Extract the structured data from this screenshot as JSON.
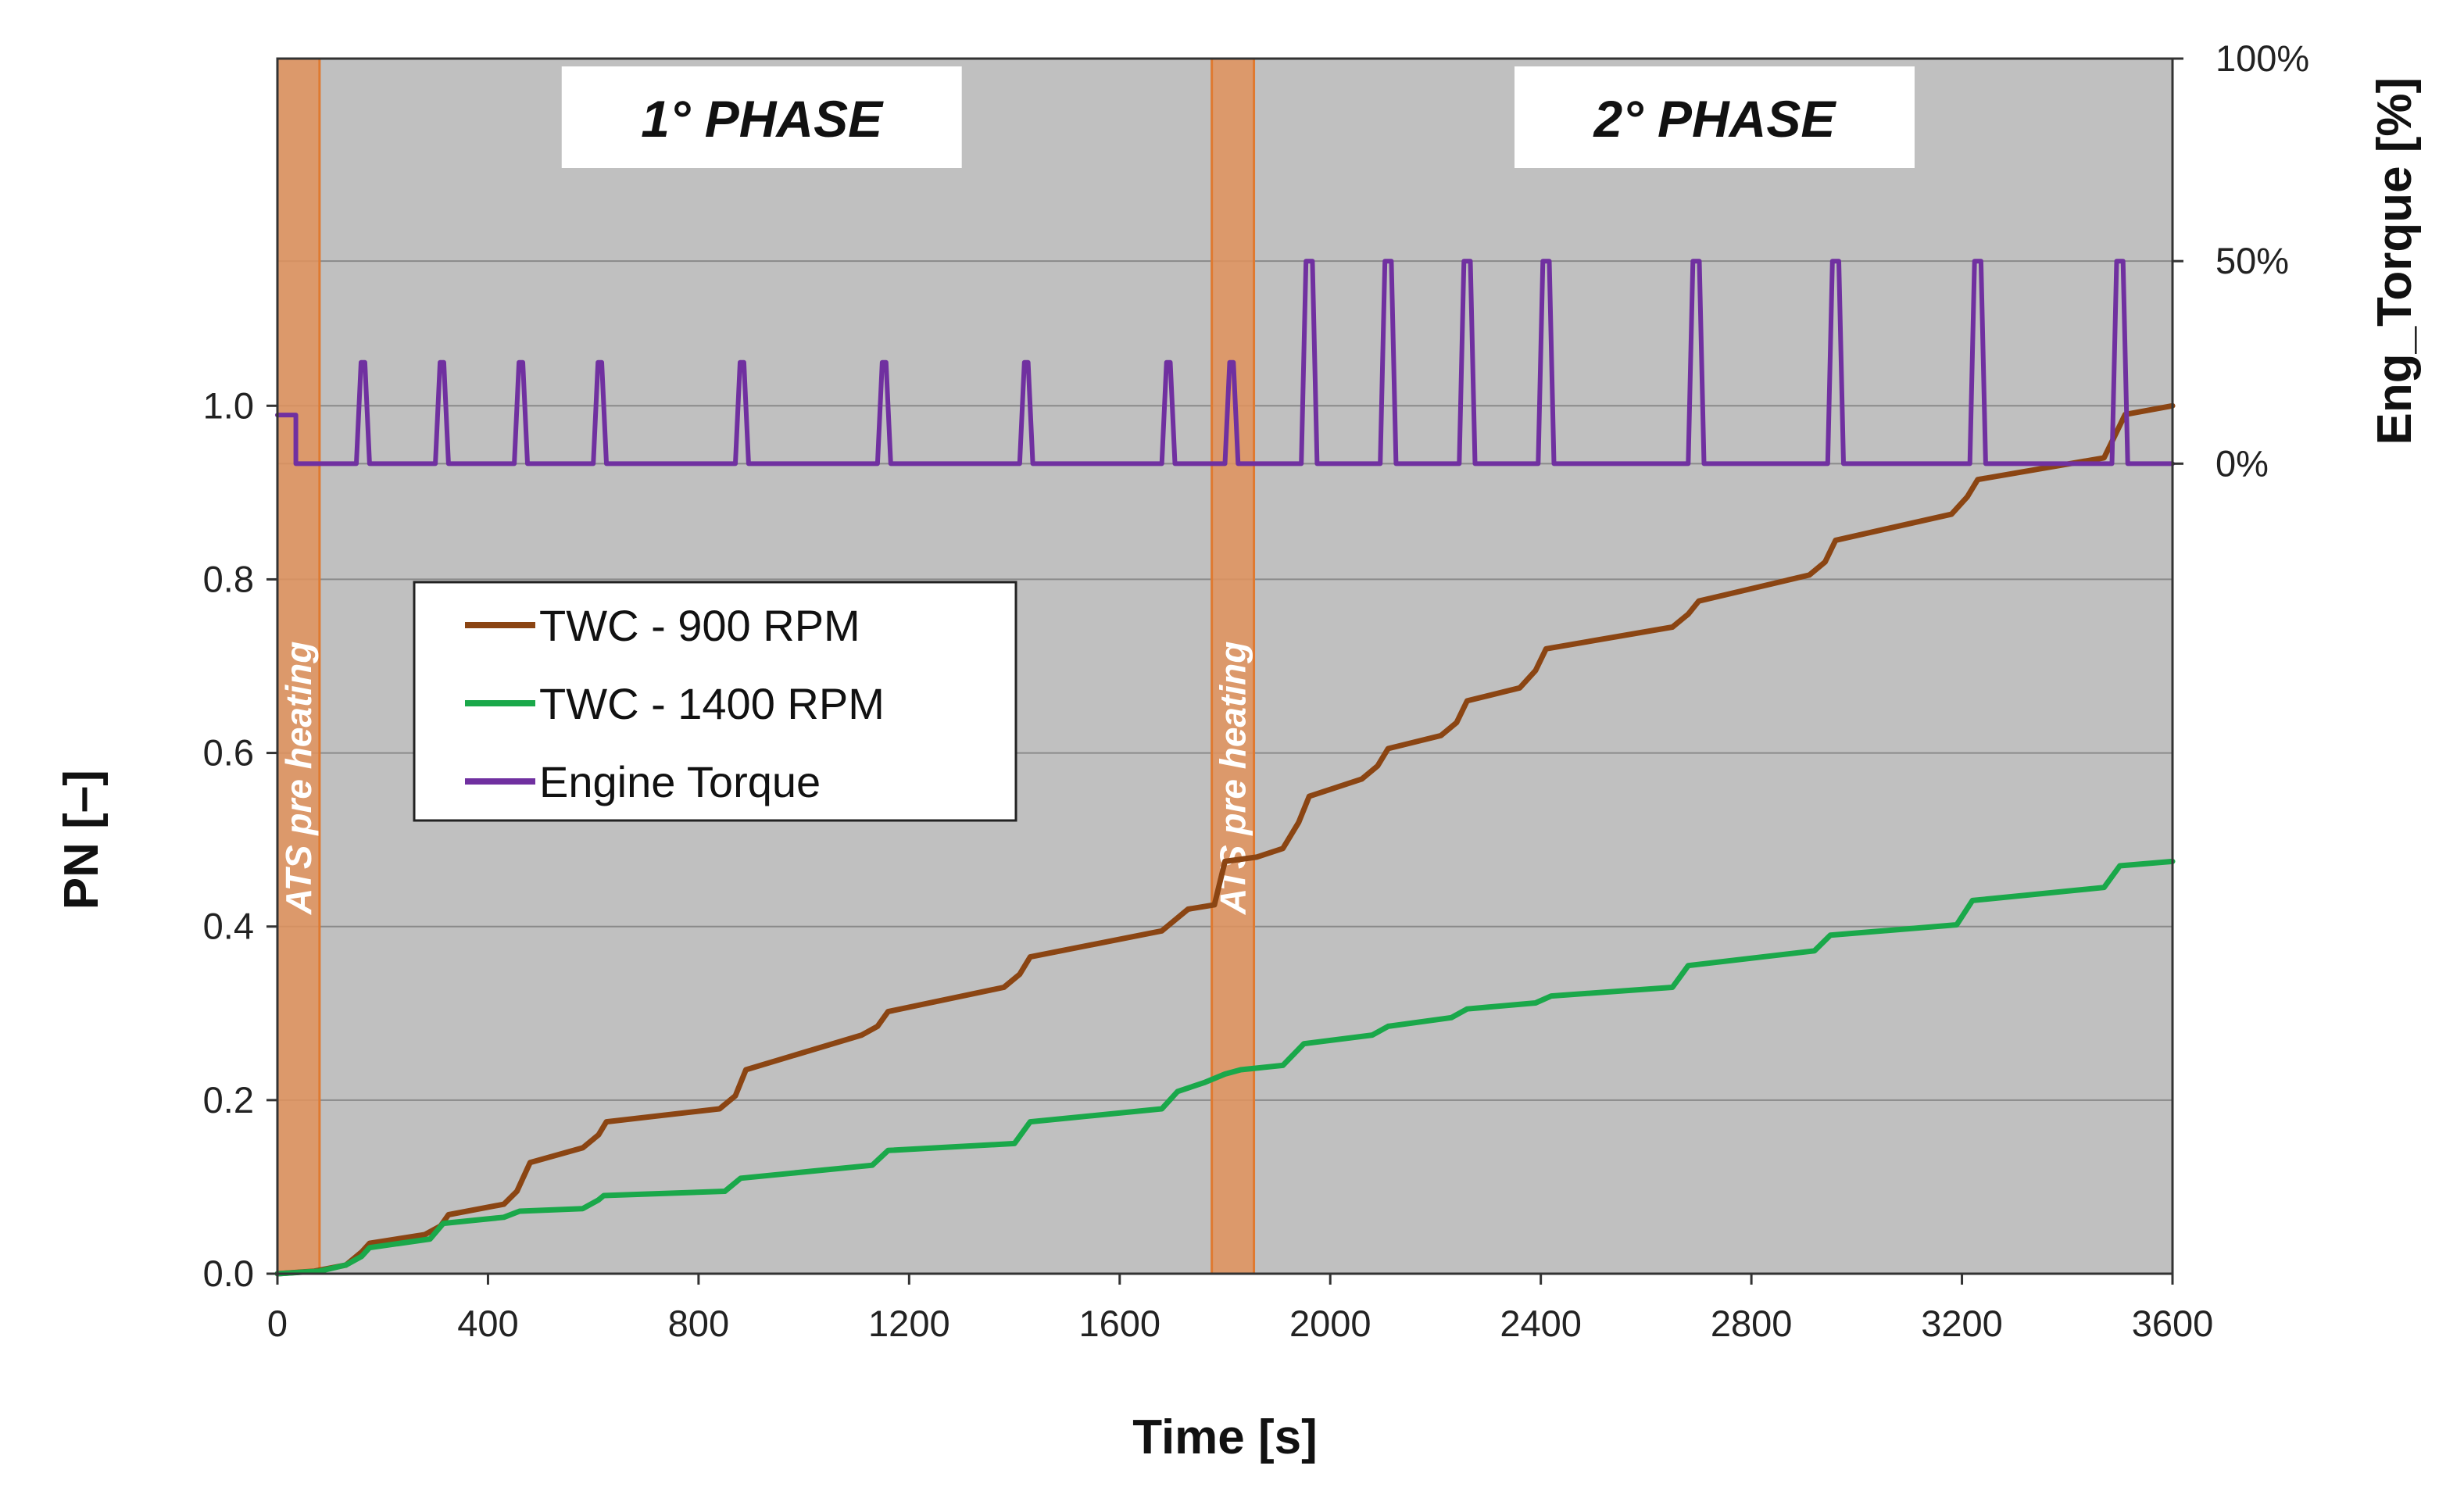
{
  "chart_data": {
    "type": "line",
    "x_axis": {
      "label": "Time [s]",
      "range": [
        0,
        3600
      ],
      "ticks": [
        0,
        400,
        800,
        1200,
        1600,
        2000,
        2400,
        2800,
        3200,
        3600
      ],
      "tick_labels": [
        "0",
        "400",
        "800",
        "1200",
        "1600",
        "2000",
        "2400",
        "2800",
        "3200",
        "3600"
      ]
    },
    "y_axis_left": {
      "label": "PN [–]",
      "range": [
        0,
        1.4
      ],
      "ticks": [
        0,
        0.2,
        0.4,
        0.6,
        0.8,
        1.0
      ],
      "tick_labels": [
        "0.0",
        "0.2",
        "0.4",
        "0.6",
        "0.8",
        "1.0"
      ]
    },
    "y_axis_right": {
      "label": "Eng_Torque [%]",
      "range": [
        -200,
        100
      ],
      "ticks": [
        0,
        50,
        100
      ],
      "tick_labels": [
        "0%",
        "50%",
        "100%"
      ]
    },
    "grid": true,
    "background_color": "#c0c0c0",
    "phase_labels": [
      {
        "text": "1° PHASE",
        "x_start": 540,
        "x_end": 1300
      },
      {
        "text": "2° PHASE",
        "x_start": 2350,
        "x_end": 3110
      }
    ],
    "shaded_bands": [
      {
        "label": "ATS pre heating",
        "x_start": 0,
        "x_end": 80,
        "color": "#e0925c"
      },
      {
        "label": "ATS pre heating",
        "x_start": 1775,
        "x_end": 1855,
        "color": "#e0925c"
      }
    ],
    "legend": {
      "position": "upper-left",
      "entries": [
        "TWC - 900 RPM",
        "TWC - 1400 RPM",
        "Engine Torque"
      ]
    },
    "series": [
      {
        "name": "TWC - 900 RPM",
        "axis": "left",
        "color": "#8b4513",
        "points": [
          [
            0,
            0
          ],
          [
            70,
            0.003
          ],
          [
            130,
            0.01
          ],
          [
            160,
            0.025
          ],
          [
            175,
            0.035
          ],
          [
            280,
            0.045
          ],
          [
            310,
            0.055
          ],
          [
            325,
            0.068
          ],
          [
            430,
            0.08
          ],
          [
            455,
            0.095
          ],
          [
            480,
            0.128
          ],
          [
            580,
            0.145
          ],
          [
            610,
            0.16
          ],
          [
            625,
            0.175
          ],
          [
            840,
            0.19
          ],
          [
            870,
            0.205
          ],
          [
            890,
            0.235
          ],
          [
            1110,
            0.275
          ],
          [
            1140,
            0.285
          ],
          [
            1160,
            0.302
          ],
          [
            1380,
            0.33
          ],
          [
            1410,
            0.345
          ],
          [
            1430,
            0.365
          ],
          [
            1680,
            0.395
          ],
          [
            1710,
            0.41
          ],
          [
            1730,
            0.42
          ],
          [
            1780,
            0.425
          ],
          [
            1800,
            0.475
          ],
          [
            1860,
            0.48
          ],
          [
            1910,
            0.49
          ],
          [
            1940,
            0.52
          ],
          [
            1960,
            0.55
          ],
          [
            2060,
            0.57
          ],
          [
            2090,
            0.585
          ],
          [
            2110,
            0.605
          ],
          [
            2210,
            0.62
          ],
          [
            2240,
            0.635
          ],
          [
            2260,
            0.66
          ],
          [
            2360,
            0.675
          ],
          [
            2390,
            0.695
          ],
          [
            2410,
            0.72
          ],
          [
            2650,
            0.745
          ],
          [
            2680,
            0.76
          ],
          [
            2700,
            0.775
          ],
          [
            2910,
            0.805
          ],
          [
            2940,
            0.82
          ],
          [
            2960,
            0.845
          ],
          [
            3180,
            0.875
          ],
          [
            3210,
            0.895
          ],
          [
            3230,
            0.915
          ],
          [
            3470,
            0.94
          ],
          [
            3490,
            0.965
          ],
          [
            3510,
            0.99
          ],
          [
            3600,
            1.0
          ]
        ]
      },
      {
        "name": "TWC - 1400 RPM",
        "axis": "left",
        "color": "#1aa84a",
        "points": [
          [
            0,
            0
          ],
          [
            80,
            0.003
          ],
          [
            130,
            0.01
          ],
          [
            160,
            0.02
          ],
          [
            175,
            0.03
          ],
          [
            290,
            0.04
          ],
          [
            315,
            0.058
          ],
          [
            430,
            0.065
          ],
          [
            460,
            0.072
          ],
          [
            580,
            0.075
          ],
          [
            610,
            0.085
          ],
          [
            620,
            0.09
          ],
          [
            850,
            0.095
          ],
          [
            880,
            0.11
          ],
          [
            1130,
            0.125
          ],
          [
            1160,
            0.142
          ],
          [
            1400,
            0.15
          ],
          [
            1430,
            0.175
          ],
          [
            1680,
            0.19
          ],
          [
            1710,
            0.21
          ],
          [
            1760,
            0.22
          ],
          [
            1800,
            0.23
          ],
          [
            1830,
            0.235
          ],
          [
            1910,
            0.24
          ],
          [
            1950,
            0.265
          ],
          [
            2080,
            0.275
          ],
          [
            2110,
            0.285
          ],
          [
            2230,
            0.295
          ],
          [
            2260,
            0.305
          ],
          [
            2390,
            0.312
          ],
          [
            2420,
            0.32
          ],
          [
            2650,
            0.33
          ],
          [
            2680,
            0.355
          ],
          [
            2920,
            0.372
          ],
          [
            2950,
            0.39
          ],
          [
            3190,
            0.402
          ],
          [
            3220,
            0.43
          ],
          [
            3470,
            0.445
          ],
          [
            3500,
            0.47
          ],
          [
            3600,
            0.475
          ]
        ]
      },
      {
        "name": "Engine Torque",
        "axis": "right",
        "color": "#7030a0",
        "pulses": [
          {
            "start": 150,
            "end": 175,
            "level": 25
          },
          {
            "start": 300,
            "end": 325,
            "level": 25
          },
          {
            "start": 450,
            "end": 475,
            "level": 25
          },
          {
            "start": 600,
            "end": 625,
            "level": 25
          },
          {
            "start": 870,
            "end": 895,
            "level": 25
          },
          {
            "start": 1140,
            "end": 1165,
            "level": 25
          },
          {
            "start": 1410,
            "end": 1435,
            "level": 25
          },
          {
            "start": 1680,
            "end": 1705,
            "level": 25
          },
          {
            "start": 1800,
            "end": 1825,
            "level": 25
          },
          {
            "start": 1945,
            "end": 1975,
            "level": 50
          },
          {
            "start": 2095,
            "end": 2125,
            "level": 50
          },
          {
            "start": 2245,
            "end": 2275,
            "level": 50
          },
          {
            "start": 2395,
            "end": 2425,
            "level": 50
          },
          {
            "start": 2680,
            "end": 2710,
            "level": 50
          },
          {
            "start": 2945,
            "end": 2975,
            "level": 50
          },
          {
            "start": 3215,
            "end": 3245,
            "level": 50
          },
          {
            "start": 3485,
            "end": 3515,
            "level": 50
          }
        ],
        "initial_pulse": {
          "start": 0,
          "end": 35,
          "level": 12
        }
      }
    ]
  }
}
